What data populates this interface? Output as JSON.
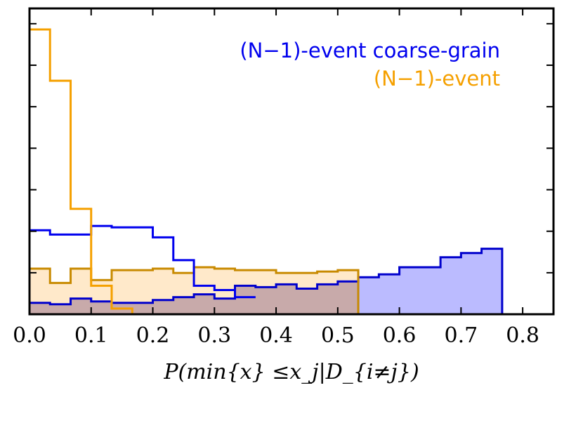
{
  "chart_data": {
    "type": "histogram",
    "title": "",
    "xlabel": "P(min{x} ≤x_j|D_{i≠j})",
    "ylabel": "",
    "xlim": [
      0.0,
      0.85
    ],
    "ylim": [
      0.0,
      1.0
    ],
    "x_ticks": [
      "0.0",
      "0.1",
      "0.2",
      "0.3",
      "0.4",
      "0.5",
      "0.6",
      "0.7",
      "0.8"
    ],
    "y_tick_count": 7,
    "legend": [
      {
        "label": "(N−1)-event coarse-grain",
        "color": "#0000ee"
      },
      {
        "label": "(N−1)-event",
        "color": "#f5a000"
      }
    ],
    "series": [
      {
        "name": "(N−1)-event coarse-grain",
        "style": "filled-step",
        "edge_color": "#0000cc",
        "fill_color": "#bbbbff",
        "fill": true,
        "bin_edges": [
          0.0,
          0.0333,
          0.0667,
          0.1,
          0.1333,
          0.1667,
          0.2,
          0.2333,
          0.2667,
          0.3,
          0.3333,
          0.3667,
          0.4,
          0.4333,
          0.4667,
          0.5,
          0.5333,
          0.5667,
          0.6,
          0.6333,
          0.6667,
          0.7,
          0.7333,
          0.7667
        ],
        "values": [
          0.04,
          0.035,
          0.055,
          0.045,
          0.04,
          0.04,
          0.05,
          0.06,
          0.07,
          0.055,
          0.1,
          0.095,
          0.105,
          0.09,
          0.105,
          0.115,
          0.13,
          0.14,
          0.165,
          0.165,
          0.2,
          0.215,
          0.23
        ]
      },
      {
        "name": "(N−1)-event",
        "style": "filled-step",
        "edge_color": "#c88a00",
        "fill_color": "#ffe2b8",
        "fill": true,
        "bin_edges": [
          0.0,
          0.0333,
          0.0667,
          0.1,
          0.1333,
          0.1667,
          0.2,
          0.2333,
          0.2667,
          0.3,
          0.3333,
          0.3667,
          0.4,
          0.4333,
          0.4667,
          0.5,
          0.5333
        ],
        "values": [
          0.16,
          0.11,
          0.16,
          0.12,
          0.155,
          0.155,
          0.16,
          0.145,
          0.165,
          0.16,
          0.155,
          0.155,
          0.145,
          0.145,
          0.15,
          0.155
        ]
      },
      {
        "name": "(N−1)-event coarse-grain (outline)",
        "style": "step",
        "edge_color": "#0000ee",
        "fill": false,
        "bin_edges": [
          0.0,
          0.0333,
          0.0667,
          0.1,
          0.1333,
          0.1667,
          0.2,
          0.2333,
          0.2667,
          0.3,
          0.3333,
          0.3667
        ],
        "values": [
          0.295,
          0.28,
          0.28,
          0.31,
          0.305,
          0.305,
          0.27,
          0.19,
          0.1,
          0.085,
          0.06,
          0.06
        ]
      },
      {
        "name": "(N−1)-event (outline)",
        "style": "step",
        "edge_color": "#f5a000",
        "fill": false,
        "bin_edges": [
          0.0,
          0.0333,
          0.0667,
          0.1,
          0.1333,
          0.1667
        ],
        "values": [
          1.0,
          0.82,
          0.37,
          0.1,
          0.02
        ]
      }
    ]
  }
}
